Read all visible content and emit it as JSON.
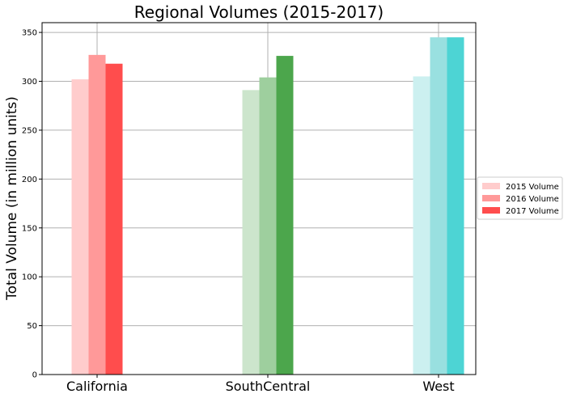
{
  "chart_data": {
    "type": "bar",
    "title": "Regional Volumes (2015-2017)",
    "xlabel": "",
    "ylabel": "Total Volume (in million units)",
    "categories": [
      "California",
      "SouthCentral",
      "West"
    ],
    "series": [
      {
        "name": "2015 Volume",
        "values": [
          302,
          291,
          305
        ]
      },
      {
        "name": "2016 Volume",
        "values": [
          327,
          304,
          345
        ]
      },
      {
        "name": "2017 Volume",
        "values": [
          318,
          326,
          345
        ]
      }
    ],
    "bar_colors": [
      [
        "#ffcccc",
        "#ff9999",
        "#ff4d4d"
      ],
      [
        "#cce5cc",
        "#9ecf9e",
        "#4ca64c"
      ],
      [
        "#ccf0f0",
        "#99e0e0",
        "#4dd4d4"
      ]
    ],
    "legend_colors": [
      "#ffcccc",
      "#ff9999",
      "#ff4d4d"
    ],
    "ylim": [
      0,
      360
    ],
    "yticks": [
      0,
      50,
      100,
      150,
      200,
      250,
      300,
      350
    ],
    "grid": true,
    "legend_position": "center-right"
  }
}
